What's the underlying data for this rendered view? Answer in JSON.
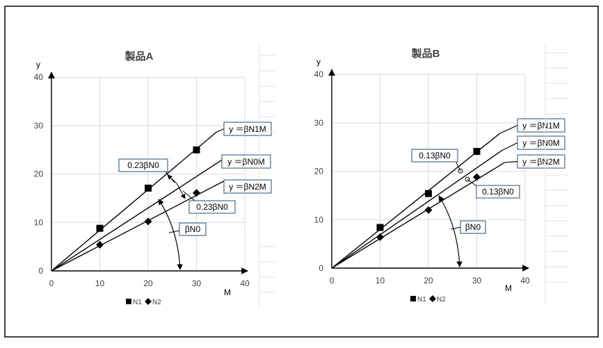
{
  "chart_data": [
    {
      "type": "scatter",
      "title": "製品A",
      "xlabel": "M",
      "ylabel": "y",
      "xlim": [
        0,
        40
      ],
      "ylim": [
        0,
        40
      ],
      "xticks": [
        "0",
        "10",
        "20",
        "30",
        "40"
      ],
      "yticks": [
        "0",
        "10",
        "20",
        "30",
        "40"
      ],
      "grid": true,
      "legend": "bottom",
      "series": [
        {
          "name": "N1",
          "marker": "square",
          "x": [
            10,
            20,
            30
          ],
          "y": [
            8.8,
            17.1,
            25.0
          ]
        },
        {
          "name": "N2",
          "marker": "diamond",
          "x": [
            10,
            20,
            30
          ],
          "y": [
            5.4,
            10.2,
            16.1
          ]
        }
      ],
      "lines": [
        {
          "slope": 0.84,
          "x_end": 34.2,
          "label": "y ＝βN1M"
        },
        {
          "slope": 0.65,
          "x_end": 35.5,
          "label": "y ＝βN0M"
        },
        {
          "slope": 0.52,
          "x_end": 36.0,
          "label": "y ＝βN2M"
        }
      ],
      "annotations": [
        {
          "text": "0.23βN0"
        },
        {
          "text": "0.23βN0"
        },
        {
          "text": "βN0"
        }
      ]
    },
    {
      "type": "scatter",
      "title": "製品B",
      "xlabel": "M",
      "ylabel": "y",
      "xlim": [
        0,
        40
      ],
      "ylim": [
        0,
        40
      ],
      "xticks": [
        "0",
        "10",
        "20",
        "30",
        "40"
      ],
      "yticks": [
        "0",
        "10",
        "20",
        "30",
        "40"
      ],
      "grid": true,
      "legend": "bottom",
      "series": [
        {
          "name": "N1",
          "marker": "square",
          "x": [
            10,
            20,
            30
          ],
          "y": [
            8.4,
            15.4,
            24.1
          ]
        },
        {
          "name": "N2",
          "marker": "diamond",
          "x": [
            10,
            20,
            30
          ],
          "y": [
            6.4,
            12.0,
            18.8
          ]
        }
      ],
      "lines": [
        {
          "slope": 0.8,
          "x_end": 34.8,
          "label": "y ＝βN1M"
        },
        {
          "slope": 0.69,
          "x_end": 35.3,
          "label": "y ＝βN0M"
        },
        {
          "slope": 0.61,
          "x_end": 35.8,
          "label": "y ＝βN2M"
        }
      ],
      "annotations": [
        {
          "text": "0.13βN0"
        },
        {
          "text": "0.13βN0"
        },
        {
          "text": "βN0"
        }
      ]
    }
  ]
}
